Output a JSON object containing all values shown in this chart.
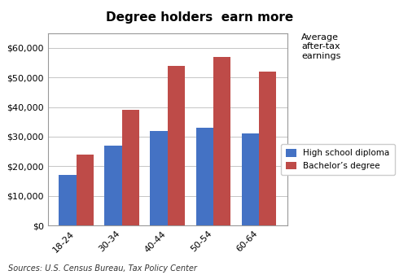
{
  "title": "Degree holders  earn more",
  "categories": [
    "18-24",
    "30-34",
    "40-44",
    "50-54",
    "60-64"
  ],
  "high_school": [
    17000,
    27000,
    32000,
    33000,
    31000
  ],
  "bachelors": [
    24000,
    39000,
    54000,
    57000,
    52000
  ],
  "hs_color": "#4472C4",
  "ba_color": "#BE4B48",
  "ylim": [
    0,
    65000
  ],
  "yticks": [
    0,
    10000,
    20000,
    30000,
    40000,
    50000,
    60000
  ],
  "annotation_text": "Average\nafter-tax\nearnings",
  "hs_label": "High school diploma",
  "ba_label": "Bachelor’s degree",
  "source_text": "Sources: U.S. Census Bureau, Tax Policy Center",
  "bg_color": "#FFFFFF",
  "plot_bg": "#FFFFFF"
}
